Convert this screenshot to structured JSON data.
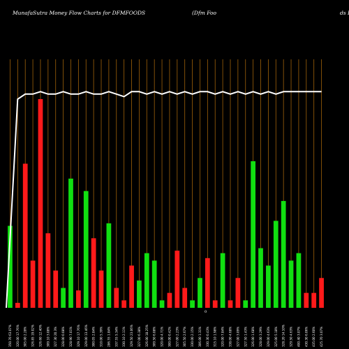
{
  "header": {
    "left": "MunafaSutra  Money Flow  Charts for DFMFOODS",
    "middle": "(Dfm Foo",
    "right": "ds L"
  },
  "axis_mark": "0",
  "colors": {
    "background": "#000000",
    "grid": "#a0620a",
    "up": "#11e011",
    "down": "#ff1a1a",
    "line": "#ffffff"
  },
  "chart_data": {
    "type": "bar",
    "title": "MunafaSutra  Money Flow  Charts for DFMFOODS",
    "ylim": [
      0,
      100
    ],
    "categories": [
      "350.70 63.07%",
      "320.00 17.76%",
      "305.00 2.28%",
      "326.85 19.02%",
      "326.60 12.40%",
      "309.10 3.08%",
      "327.30 20.3%",
      "328.00 0.08%",
      "328.90 7.01%",
      "329.10 17.76%",
      "329.00 13.46%",
      "300.05 2.84%",
      "310.00 5.39%",
      "286.55 1.84%",
      "337.55 5.34%",
      "330.10 2.11%",
      "329.50 23.06%",
      "327.00 6.38%",
      "326.00 18.25%",
      "309.50 6.08%",
      "320.00 4.71%",
      "300.00 0.42%",
      "327.00 2.23%",
      "305.50 2.67%",
      "330.00 2.15%",
      "306.00 1.31%",
      "330.30 0.43%",
      "315.10 1.98%",
      "320.00 7.84%",
      "338.00 4.68%",
      "327.00 3.09%",
      "327.50 1.43%",
      "326.00 1.68%",
      "328.00 3.29%",
      "329.00 4.63%",
      "325.00 5.18%",
      "328.20 14.10%",
      "329.50 4.63%",
      "400.40 3.07%",
      "430.30 6.06%",
      "435.00 2.60%",
      "425.70 3.07%"
    ],
    "series": [
      {
        "values": [
          33,
          2,
          58,
          19,
          84,
          30,
          15,
          8,
          52,
          7,
          47,
          28,
          15,
          34,
          8,
          3,
          17,
          11,
          22,
          19,
          3,
          6,
          23,
          8,
          3,
          12,
          20,
          3,
          22,
          3,
          12,
          3,
          59,
          24,
          17,
          35,
          43,
          19,
          22,
          6,
          6,
          12
        ],
        "direction": [
          "up",
          "down",
          "down",
          "down",
          "down",
          "down",
          "down",
          "up",
          "up",
          "down",
          "up",
          "down",
          "down",
          "up",
          "down",
          "down",
          "down",
          "up",
          "up",
          "up",
          "up",
          "down",
          "down",
          "down",
          "up",
          "up",
          "down",
          "down",
          "up",
          "down",
          "down",
          "up",
          "up",
          "up",
          "up",
          "up",
          "up",
          "up",
          "up",
          "down",
          "down",
          "down"
        ]
      },
      {
        "values": [
          0,
          84,
          86,
          86,
          87,
          86,
          86,
          87,
          86,
          86,
          87,
          86,
          86,
          87,
          86,
          85,
          87,
          87,
          86,
          87,
          86,
          87,
          86,
          87,
          86,
          87,
          87,
          86,
          87,
          86,
          87,
          86,
          87,
          86,
          87,
          86,
          87,
          87,
          87,
          87,
          87,
          87
        ],
        "style": "line"
      }
    ],
    "grid": true
  }
}
